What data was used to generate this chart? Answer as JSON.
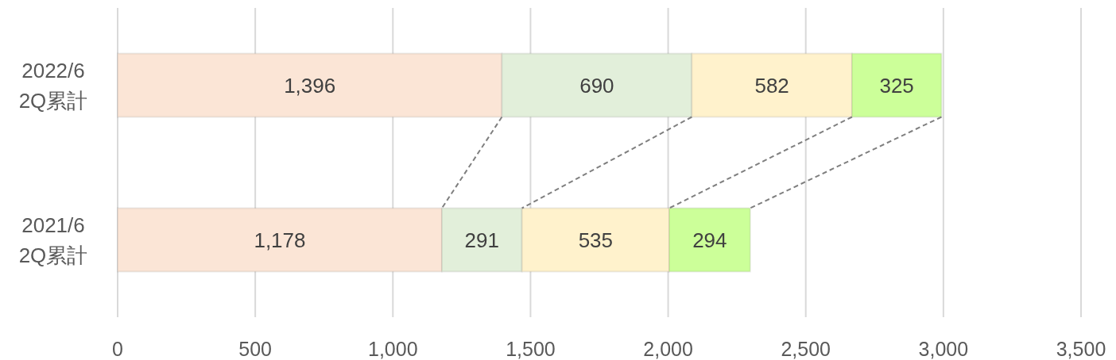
{
  "chart_data": {
    "type": "bar",
    "orientation": "horizontal",
    "stacked": true,
    "categories": [
      "2022/6\n2Q累計",
      "2021/6\n2Q累計"
    ],
    "series": [
      {
        "color": "#fbe5d6",
        "values": [
          1396,
          1178
        ],
        "value_labels": [
          "1,396",
          "1,178"
        ]
      },
      {
        "color": "#e2efda",
        "values": [
          690,
          291
        ],
        "value_labels": [
          "690",
          "291"
        ]
      },
      {
        "color": "#fff2cc",
        "values": [
          582,
          535
        ],
        "value_labels": [
          "582",
          "535"
        ]
      },
      {
        "color": "#ccff99",
        "values": [
          325,
          294
        ],
        "value_labels": [
          "325",
          "294"
        ]
      }
    ],
    "xlim": [
      0,
      3500
    ],
    "xticks": [
      0,
      500,
      {
        "value": 1000,
        "label": "1,000"
      },
      {
        "value": 1500,
        "label": "1,500"
      },
      {
        "value": 2000,
        "label": "2,000"
      },
      {
        "value": 2500,
        "label": "2,500"
      },
      {
        "value": 3000,
        "label": "3,000"
      },
      {
        "value": 3500,
        "label": "3,500"
      }
    ],
    "grid": "x"
  }
}
